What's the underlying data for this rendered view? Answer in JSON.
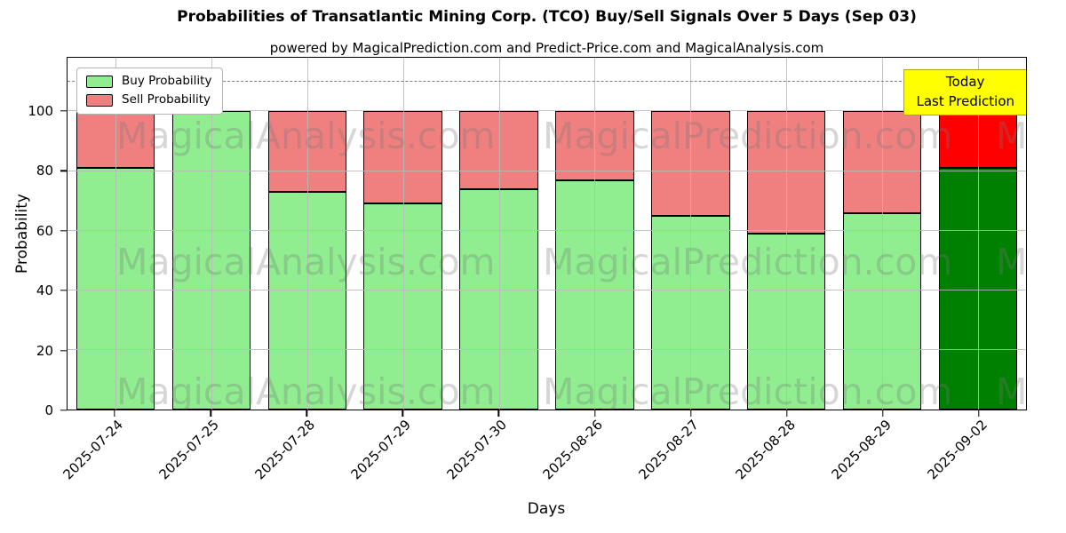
{
  "chart_data": {
    "type": "bar",
    "stacked": true,
    "title": "Probabilities of Transatlantic Mining Corp. (TCO) Buy/Sell Signals Over 5 Days (Sep 03)",
    "subtitle": "powered by MagicalPrediction.com and Predict-Price.com and MagicalAnalysis.com",
    "xlabel": "Days",
    "ylabel": "Probability",
    "categories": [
      "2025-07-24",
      "2025-07-25",
      "2025-07-28",
      "2025-07-29",
      "2025-07-30",
      "2025-08-26",
      "2025-08-27",
      "2025-08-28",
      "2025-08-29",
      "2025-09-02"
    ],
    "series": [
      {
        "name": "Buy Probability",
        "color": "#90ee90",
        "values": [
          81,
          100,
          73,
          69,
          74,
          77,
          65,
          59,
          66,
          81
        ]
      },
      {
        "name": "Sell Probability",
        "color": "#f08080",
        "values": [
          19,
          0,
          27,
          31,
          26,
          23,
          35,
          41,
          34,
          19
        ]
      }
    ],
    "today_bar": {
      "index": 9,
      "buy_color": "#008000",
      "sell_color": "#ff0000"
    },
    "ylim": [
      0,
      118
    ],
    "yticks": [
      0,
      20,
      40,
      60,
      80,
      100
    ],
    "dashed_line_y": 110,
    "grid": true,
    "legend_position": "upper left",
    "bar_edge_color": "#000000"
  },
  "legend": {
    "items": [
      {
        "label": "Buy Probability",
        "color": "#90ee90"
      },
      {
        "label": "Sell Probability",
        "color": "#f08080"
      }
    ]
  },
  "annotation": {
    "line1": "Today",
    "line2": "Last Prediction",
    "bg": "#ffff00",
    "border": "#b8a000"
  },
  "watermarks": {
    "left": "MagicalAnalysis.com",
    "right": "MagicalPrediction.com"
  }
}
